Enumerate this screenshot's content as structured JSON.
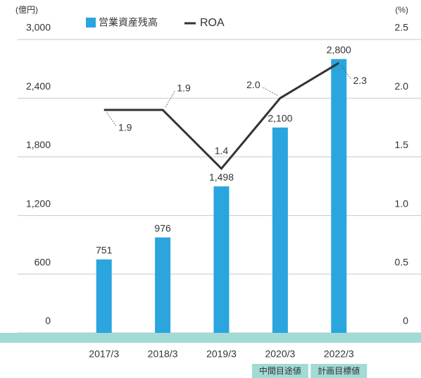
{
  "chart_data": {
    "type": "bar",
    "y_unit": "(億円)",
    "y2_unit": "(%)",
    "categories": [
      "2017/3",
      "2018/3",
      "2019/3",
      "2020/3",
      "2022/3"
    ],
    "category_notes": [
      null,
      null,
      null,
      "中間目途値",
      "計画目標値"
    ],
    "series": [
      {
        "name": "営業資産残高",
        "color": "#2aa5de",
        "type": "bar",
        "values": [
          751,
          976,
          1498,
          2100,
          2800
        ],
        "value_labels": [
          "751",
          "976",
          "1,498",
          "2,100",
          "2,800"
        ]
      },
      {
        "name": "ROA",
        "color": "#333333",
        "type": "line",
        "axis": "y2",
        "values": [
          1.9,
          1.9,
          1.4,
          2.0,
          2.3
        ],
        "value_labels": [
          "1.9",
          "1.9",
          "1.4",
          "2.0",
          "2.3"
        ]
      }
    ],
    "ylim": [
      0,
      3000
    ],
    "yticks": [
      0,
      600,
      {
        "value": 1200,
        "label": "1,200"
      },
      {
        "value": 1800,
        "label": "1,800"
      },
      {
        "value": 2400,
        "label": "2,400"
      },
      {
        "value": 3000,
        "label": "3,000"
      }
    ],
    "y2lim": [
      0,
      2.5
    ],
    "y2ticks": [
      0,
      0.5,
      {
        "value": 1,
        "label": "1.0"
      },
      1.5,
      {
        "value": 2,
        "label": "2.0"
      },
      2.5
    ],
    "grid": true,
    "band_color": "#a2dad5"
  }
}
